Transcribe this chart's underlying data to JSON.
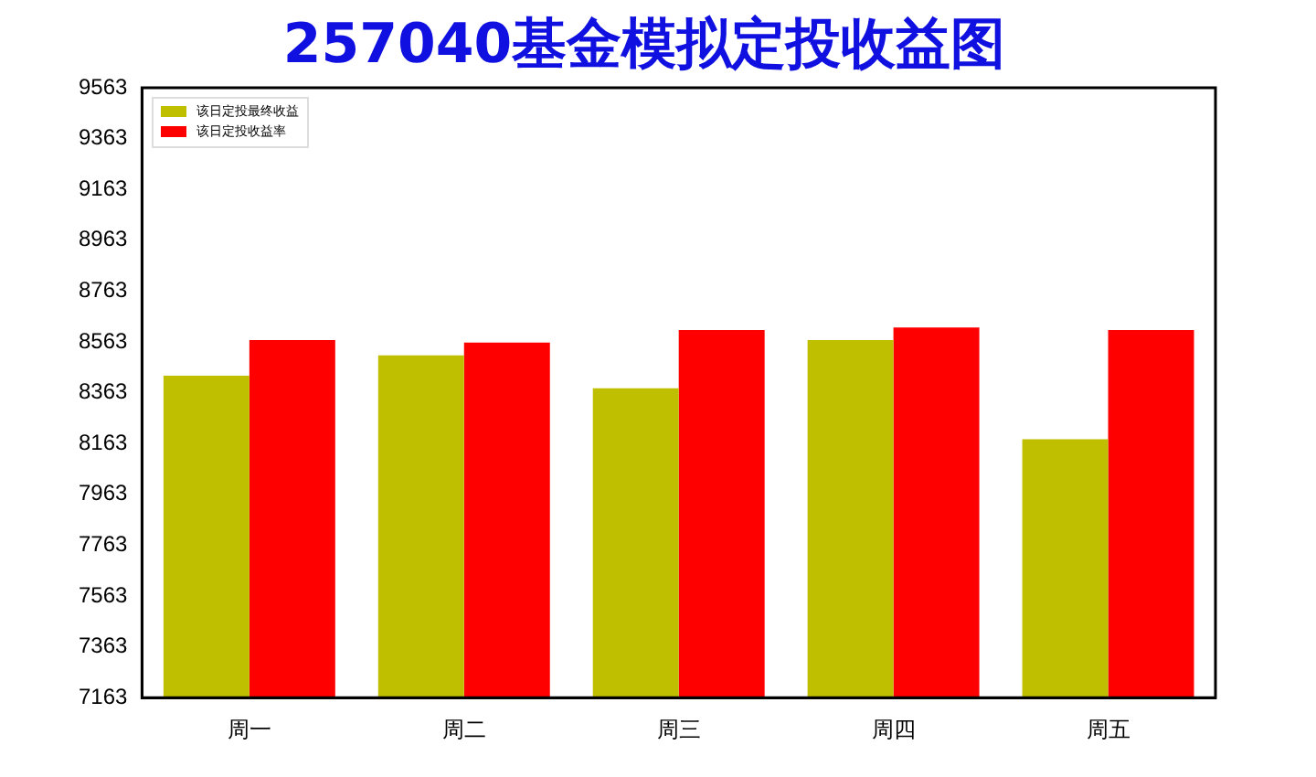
{
  "chart_data": {
    "type": "bar",
    "title": "257040基金模拟定投收益图",
    "categories": [
      "周一",
      "周二",
      "周三",
      "周四",
      "周五"
    ],
    "series": [
      {
        "name": "该日定投最终收益",
        "color": "#bfbf00",
        "values": [
          8430,
          8510,
          8380,
          8570,
          8180
        ]
      },
      {
        "name": "该日定投收益率",
        "color": "#ff0000",
        "values": [
          8570,
          8560,
          8610,
          8620,
          8610
        ]
      }
    ],
    "ylim": [
      7163,
      9563
    ],
    "yticks": [
      7163,
      7363,
      7563,
      7763,
      7963,
      8163,
      8363,
      8563,
      8763,
      8963,
      9163,
      9363,
      9563
    ],
    "grid": false,
    "legend": "top left"
  }
}
